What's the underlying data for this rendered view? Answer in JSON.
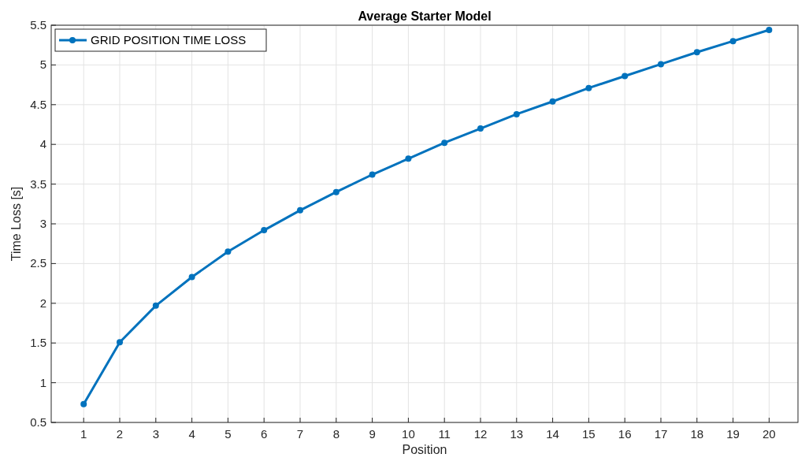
{
  "chart_data": {
    "type": "line",
    "title": "Average Starter Model",
    "xlabel": "Position",
    "ylabel": "Time Loss [s]",
    "x": [
      1,
      2,
      3,
      4,
      5,
      6,
      7,
      8,
      9,
      10,
      11,
      12,
      13,
      14,
      15,
      16,
      17,
      18,
      19,
      20
    ],
    "series": [
      {
        "name": "GRID POSITION TIME LOSS",
        "color": "#0072bd",
        "values": [
          0.73,
          1.51,
          1.97,
          2.33,
          2.65,
          2.92,
          3.17,
          3.4,
          3.62,
          3.82,
          4.02,
          4.2,
          4.38,
          4.54,
          4.71,
          4.86,
          5.01,
          5.16,
          5.3,
          5.44
        ]
      }
    ],
    "xlim": [
      0.1,
      20.8
    ],
    "xticks": [
      1,
      2,
      3,
      4,
      5,
      6,
      7,
      8,
      9,
      10,
      11,
      12,
      13,
      14,
      15,
      16,
      17,
      18,
      19,
      20
    ],
    "ylim": [
      0.5,
      5.5
    ],
    "yticks": [
      0.5,
      1,
      1.5,
      2,
      2.5,
      3,
      3.5,
      4,
      4.5,
      5,
      5.5
    ],
    "grid": true,
    "legend": "top left",
    "marker": "circle",
    "line_style": "solid"
  }
}
